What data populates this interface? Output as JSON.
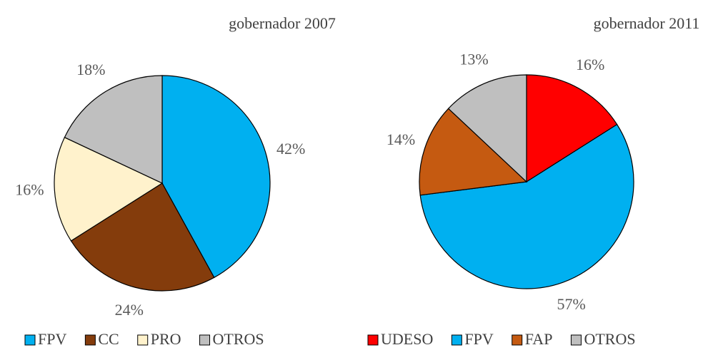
{
  "chart_data": [
    {
      "type": "pie",
      "title": "gobernador 2007",
      "categories": [
        "FPV",
        "CC",
        "PRO",
        "OTROS"
      ],
      "values": [
        42,
        24,
        16,
        18
      ],
      "value_labels": [
        "42%",
        "24%",
        "16%",
        "18%"
      ],
      "colors": [
        "#00b0f0",
        "#843c0c",
        "#fff2cc",
        "#bfbfbf"
      ],
      "legend": "bottom"
    },
    {
      "type": "pie",
      "title": "gobernador 2011",
      "categories": [
        "UDESO",
        "FPV",
        "FAP",
        "OTROS"
      ],
      "values": [
        16,
        57,
        14,
        13
      ],
      "value_labels": [
        "16%",
        "57%",
        "14%",
        "13%"
      ],
      "colors": [
        "#ff0000",
        "#00b0f0",
        "#c55a11",
        "#bfbfbf"
      ],
      "legend": "bottom"
    }
  ]
}
